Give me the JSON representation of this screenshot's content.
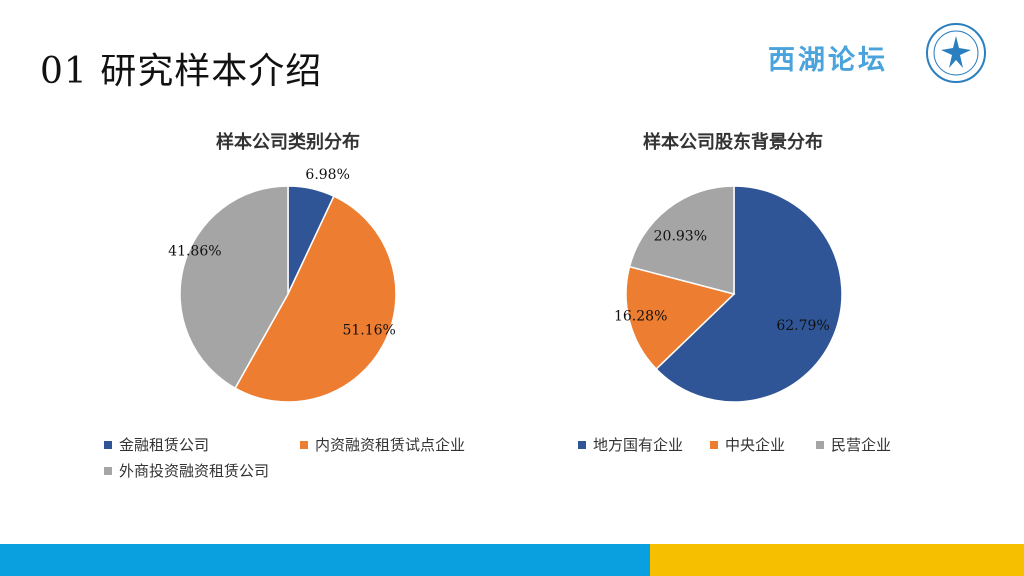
{
  "slide": {
    "title": "01  研究样本介绍",
    "logo_text": "西湖论坛"
  },
  "colors": {
    "blue": "#2f5597",
    "orange": "#ed7d31",
    "gray": "#a5a5a5",
    "footer_blue": "#0aa0e0",
    "footer_yellow": "#f6c000"
  },
  "chart_data": [
    {
      "type": "pie",
      "title": "样本公司类别分布",
      "legend_position": "bottom",
      "categories": [
        "金融租赁公司",
        "内资融资租赁试点企业",
        "外商投资融资租赁公司"
      ],
      "values": [
        6.98,
        51.16,
        41.86
      ],
      "labels": [
        "6.98%",
        "51.16%",
        "41.86%"
      ],
      "colors": [
        "#2f5597",
        "#ed7d31",
        "#a5a5a5"
      ]
    },
    {
      "type": "pie",
      "title": "样本公司股东背景分布",
      "legend_position": "bottom",
      "categories": [
        "地方国有企业",
        "中央企业",
        "民营企业"
      ],
      "values": [
        62.79,
        16.28,
        20.93
      ],
      "labels": [
        "62.79%",
        "16.28%",
        "20.93%"
      ],
      "colors": [
        "#2f5597",
        "#ed7d31",
        "#a5a5a5"
      ]
    }
  ]
}
